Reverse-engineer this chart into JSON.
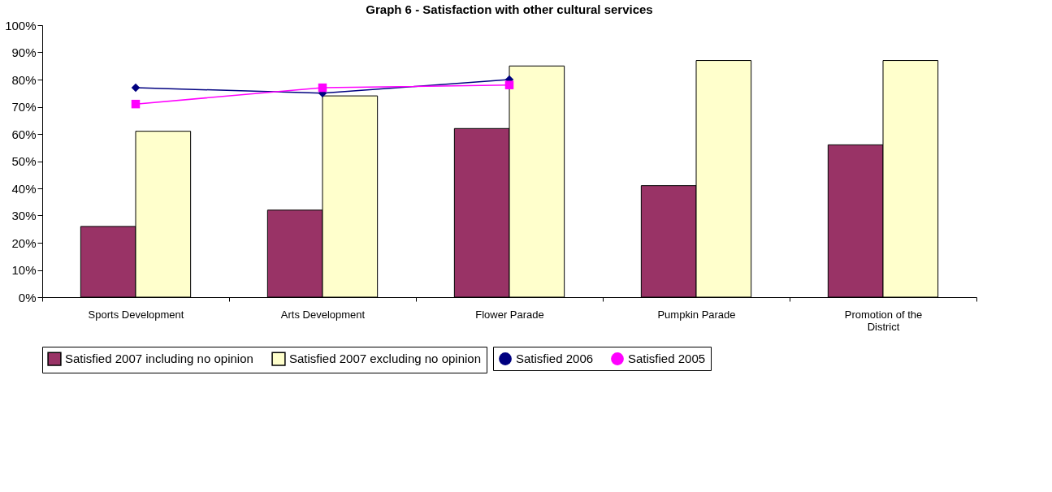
{
  "chart_data": {
    "type": "bar",
    "title": "Graph 6 - Satisfaction with other cultural services",
    "categories": [
      "Sports Development",
      "Arts Development",
      "Flower Parade",
      "Pumpkin Parade",
      "Promotion of the District"
    ],
    "series": [
      {
        "name": "Satisfied 2007 including no opinion",
        "color": "#993366",
        "values": [
          26,
          32,
          62,
          41,
          56
        ]
      },
      {
        "name": "Satisfied 2007 excluding no opinion",
        "color": "#ffffcc",
        "values": [
          61,
          74,
          85,
          87,
          87
        ]
      },
      {
        "name": "Satisfied 2006",
        "type": "line",
        "color": "#000080",
        "marker": "diamond",
        "values": [
          77,
          75,
          80,
          null,
          null
        ]
      },
      {
        "name": "Satisfied 2005",
        "type": "line",
        "color": "#ff00ff",
        "marker": "square",
        "values": [
          71,
          77,
          78,
          null,
          null
        ]
      }
    ],
    "ylim": [
      0,
      100
    ],
    "yticks": [
      {
        "value": 0,
        "label": "0%"
      },
      {
        "value": 10,
        "label": "10%"
      },
      {
        "value": 20,
        "label": "20%"
      },
      {
        "value": 30,
        "label": "30%"
      },
      {
        "value": 40,
        "label": "40%"
      },
      {
        "value": 50,
        "label": "50%"
      },
      {
        "value": 60,
        "label": "60%"
      },
      {
        "value": 70,
        "label": "70%"
      },
      {
        "value": 80,
        "label": "80%"
      },
      {
        "value": 90,
        "label": "90%"
      },
      {
        "value": 100,
        "label": "100%"
      }
    ],
    "grid": false,
    "legend": "bottom"
  }
}
